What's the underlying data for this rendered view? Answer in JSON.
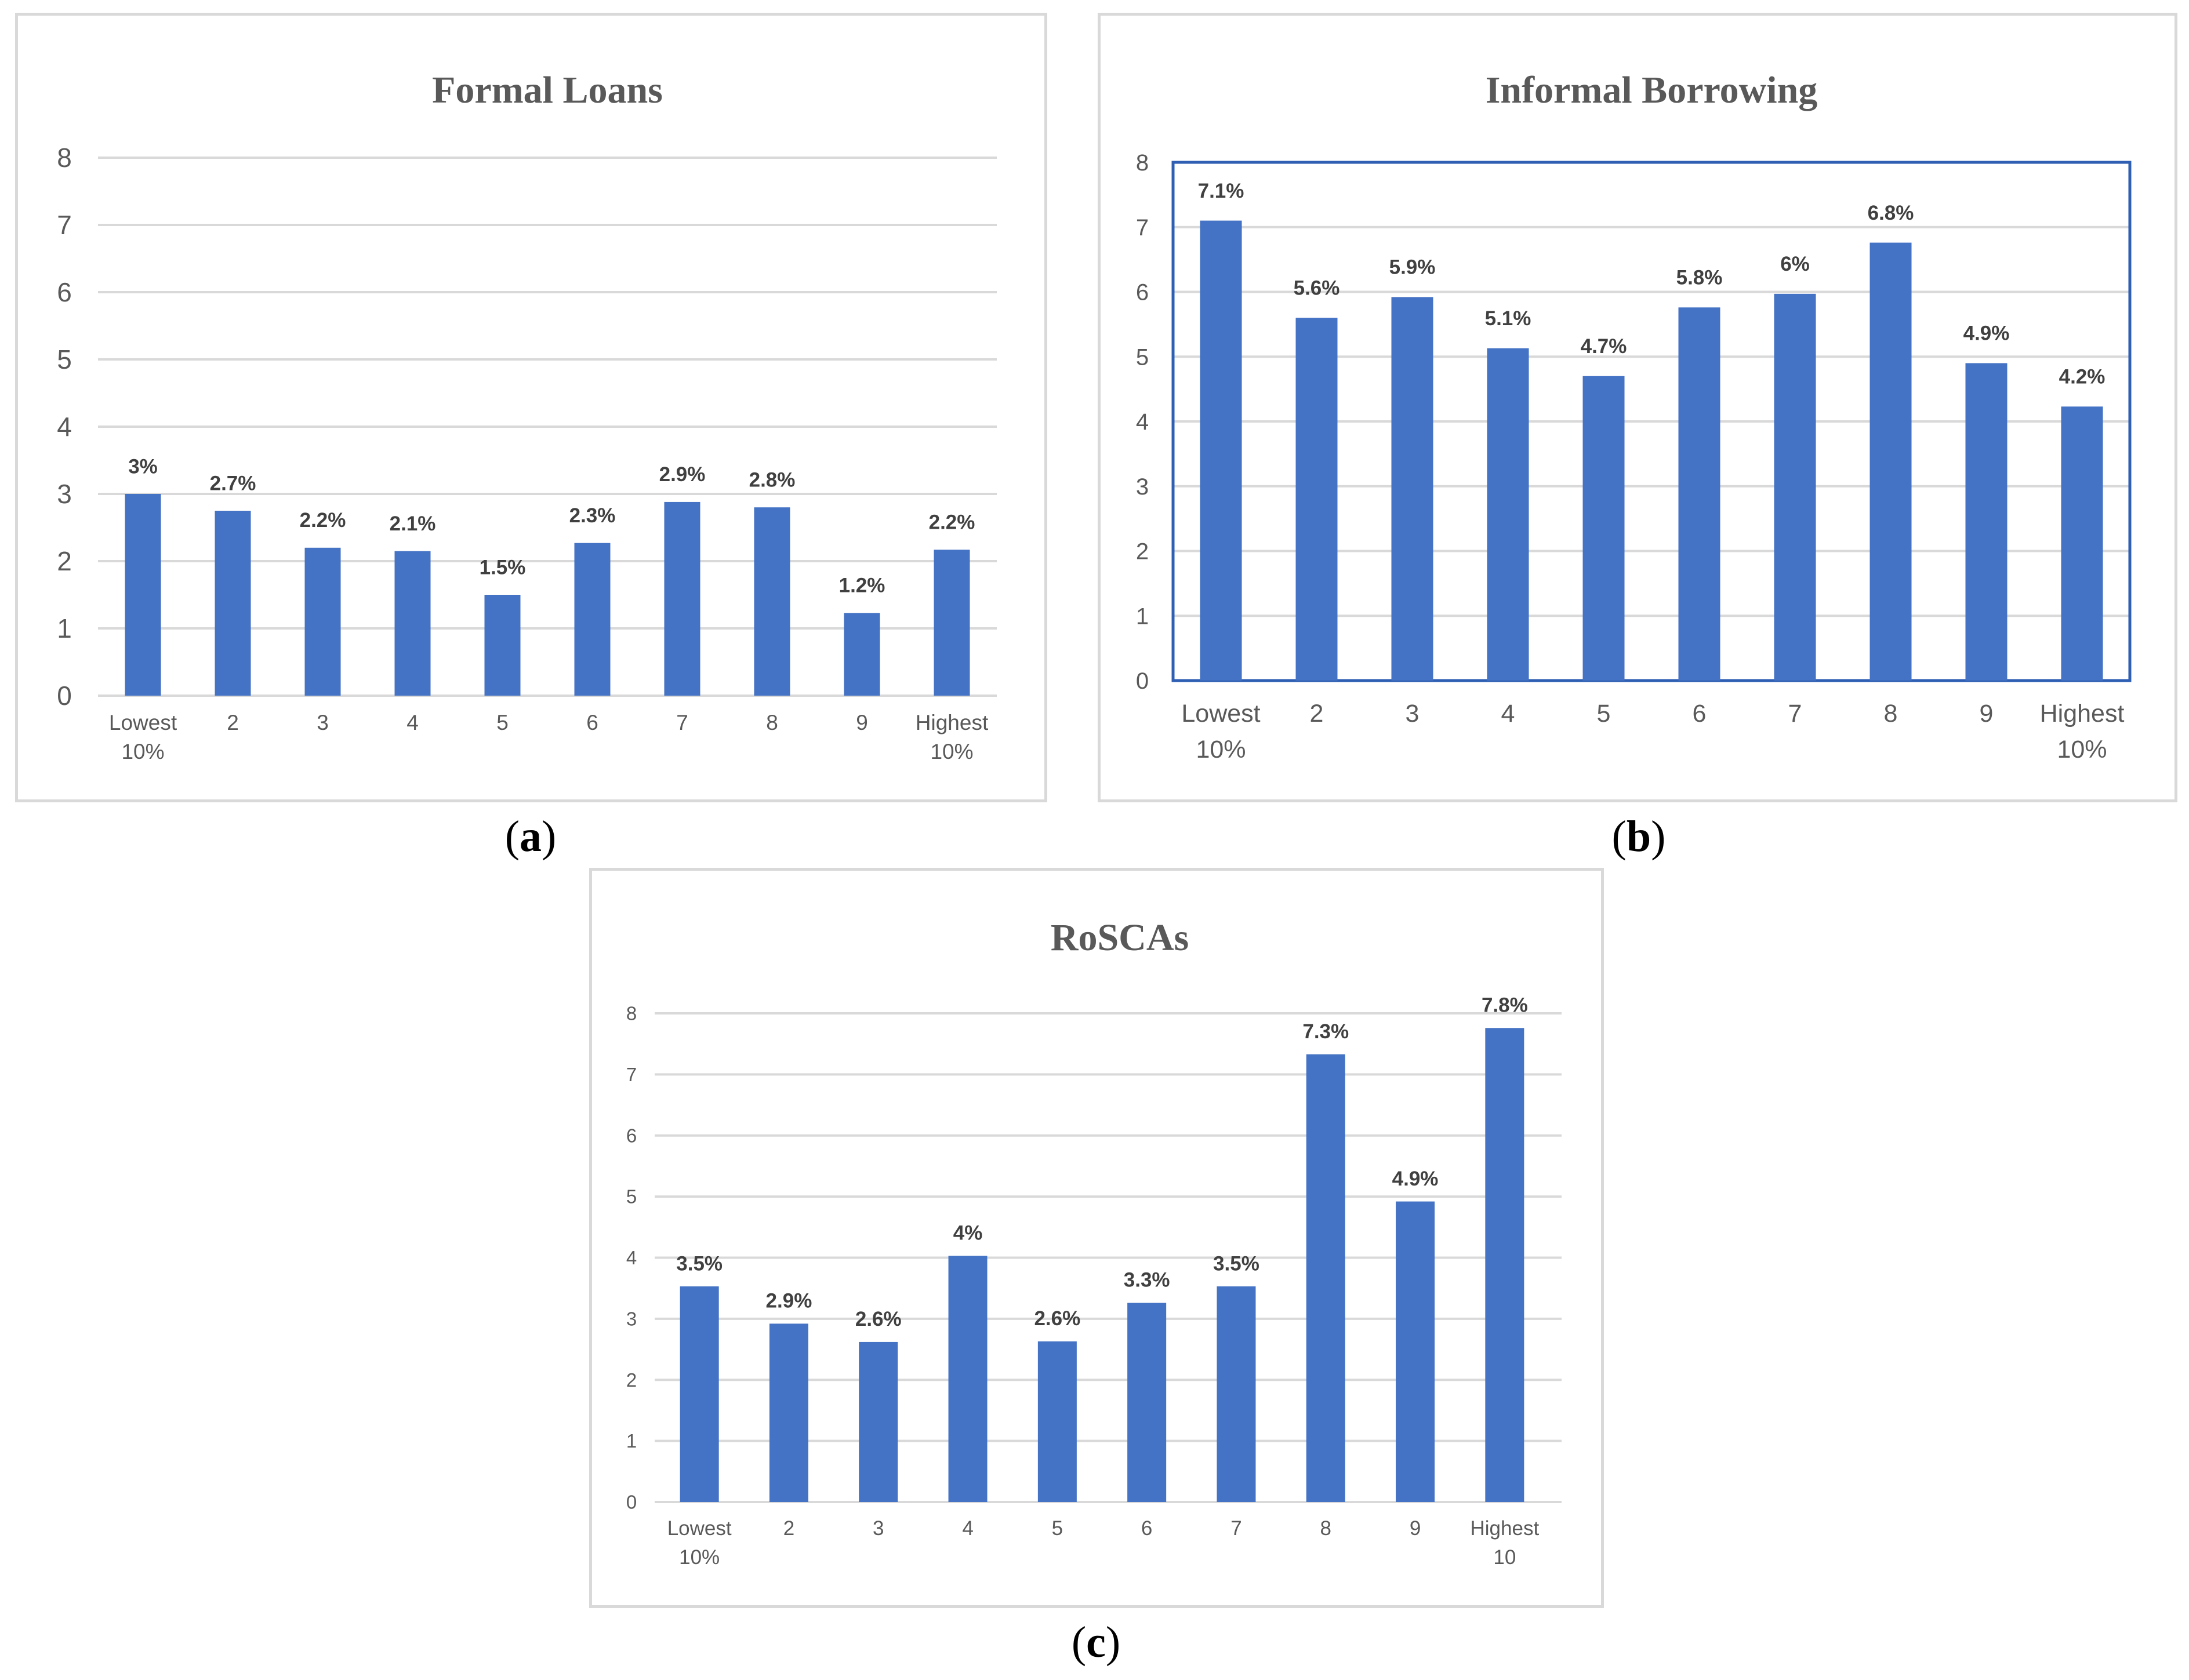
{
  "colors": {
    "bar": "#4472c4",
    "grid": "#d9d9d9",
    "text": "#595959",
    "label": "#404040",
    "plotBorder": "#2f5fb3"
  },
  "captions": {
    "a": "a",
    "b": "b",
    "c": "c"
  },
  "chart_data": [
    {
      "type": "bar",
      "title": "Formal Loans",
      "categories": [
        [
          "Lowest",
          "10%"
        ],
        [
          "2"
        ],
        [
          "3"
        ],
        [
          "4"
        ],
        [
          "5"
        ],
        [
          "6"
        ],
        [
          "7"
        ],
        [
          "8"
        ],
        [
          "9"
        ],
        [
          "Highest",
          "10%"
        ]
      ],
      "values": [
        3.0,
        2.75,
        2.2,
        2.15,
        1.5,
        2.27,
        2.88,
        2.8,
        1.23,
        2.17
      ],
      "data_labels": [
        "3%",
        "2.7%",
        "2.2%",
        "2.1%",
        "1.5%",
        "2.3%",
        "2.9%",
        "2.8%",
        "1.2%",
        "2.2%"
      ],
      "yticks": [
        "0",
        "1",
        "2",
        "3",
        "4",
        "5",
        "6",
        "7",
        "8"
      ],
      "ylim": [
        0,
        8
      ],
      "grid": true
    },
    {
      "type": "bar",
      "title": "Informal Borrowing",
      "categories": [
        [
          "Lowest",
          "10%"
        ],
        [
          "2"
        ],
        [
          "3"
        ],
        [
          "4"
        ],
        [
          "5"
        ],
        [
          "6"
        ],
        [
          "7"
        ],
        [
          "8"
        ],
        [
          "9"
        ],
        [
          "Highest",
          "10%"
        ]
      ],
      "values": [
        7.1,
        5.6,
        5.92,
        5.13,
        4.7,
        5.76,
        5.97,
        6.76,
        4.9,
        4.23
      ],
      "data_labels": [
        "7.1%",
        "5.6%",
        "5.9%",
        "5.1%",
        "4.7%",
        "5.8%",
        "6%",
        "6.8%",
        "4.9%",
        "4.2%"
      ],
      "yticks": [
        "0",
        "1",
        "2",
        "3",
        "4",
        "5",
        "6",
        "7",
        "8"
      ],
      "ylim": [
        0,
        8
      ],
      "grid": true
    },
    {
      "type": "bar",
      "title": "RoSCAs",
      "categories": [
        [
          "Lowest",
          "10%"
        ],
        [
          "2"
        ],
        [
          "3"
        ],
        [
          "4"
        ],
        [
          "5"
        ],
        [
          "6"
        ],
        [
          "7"
        ],
        [
          "8"
        ],
        [
          "9"
        ],
        [
          "Highest",
          "10"
        ]
      ],
      "values": [
        3.53,
        2.92,
        2.62,
        4.03,
        2.63,
        3.26,
        3.53,
        7.33,
        4.92,
        7.76
      ],
      "data_labels": [
        "3.5%",
        "2.9%",
        "2.6%",
        "4%",
        "2.6%",
        "3.3%",
        "3.5%",
        "7.3%",
        "4.9%",
        "7.8%"
      ],
      "yticks": [
        "0",
        "1",
        "2",
        "3",
        "4",
        "5",
        "6",
        "7",
        "8"
      ],
      "ylim": [
        0,
        8
      ],
      "grid": true
    }
  ]
}
